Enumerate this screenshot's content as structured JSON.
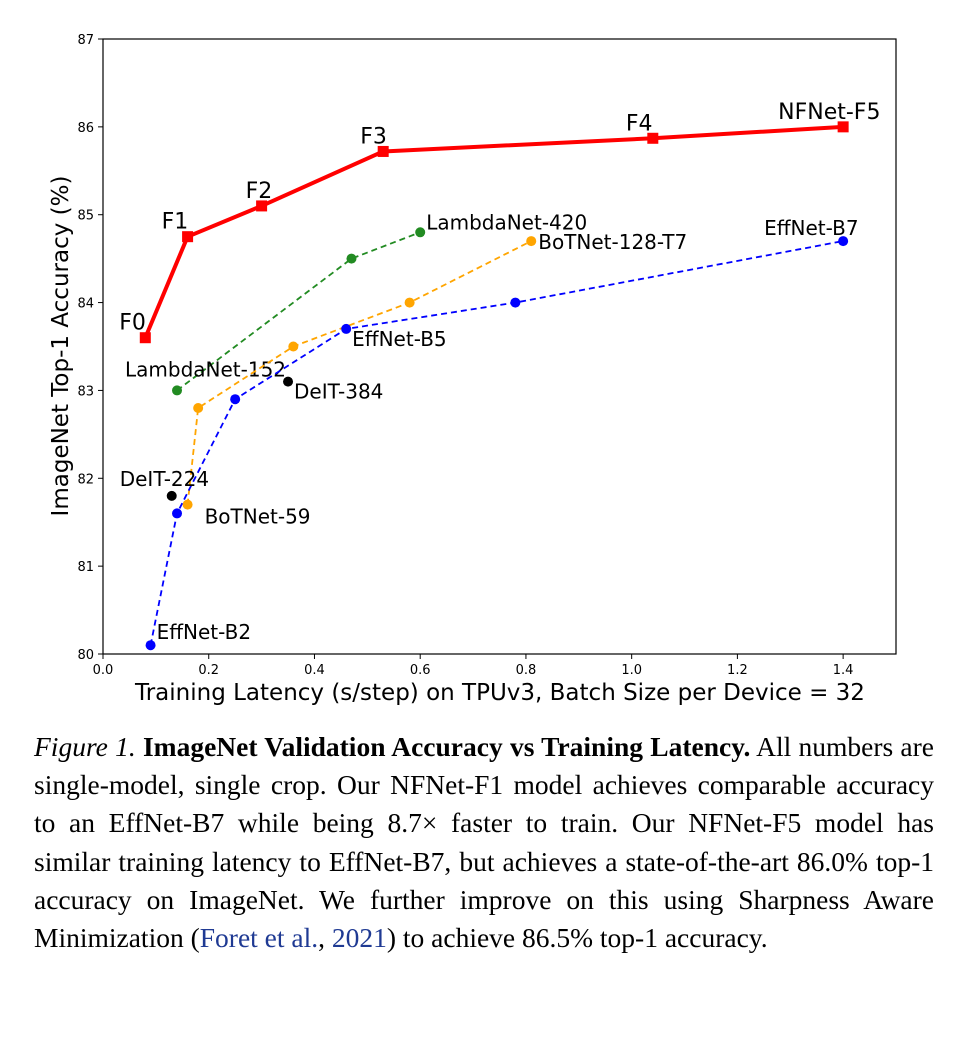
{
  "chart_data": {
    "type": "line",
    "xlabel": "Training Latency (s/step) on TPUv3, Batch Size per Device = 32",
    "ylabel": "ImageNet Top-1 Accuracy (%)",
    "xlim": [
      0.0,
      1.5
    ],
    "ylim": [
      80,
      87
    ],
    "xticks": [
      "0.0",
      "0.2",
      "0.4",
      "0.6",
      "0.8",
      "1.0",
      "1.2",
      "1.4"
    ],
    "yticks": [
      "80",
      "81",
      "82",
      "83",
      "84",
      "85",
      "86",
      "87"
    ],
    "grid": false,
    "series": [
      {
        "color": "#ff0000",
        "style": "solid",
        "marker": "square",
        "points": [
          {
            "x": 0.08,
            "y": 83.6,
            "label": "F0"
          },
          {
            "x": 0.16,
            "y": 84.75,
            "label": "F1"
          },
          {
            "x": 0.3,
            "y": 85.1,
            "label": "F2"
          },
          {
            "x": 0.53,
            "y": 85.72,
            "label": "F3"
          },
          {
            "x": 1.04,
            "y": 85.87,
            "label": "F4"
          },
          {
            "x": 1.4,
            "y": 86.0,
            "label": "NFNet-F5"
          }
        ]
      },
      {
        "color": "#228b22",
        "style": "dashed",
        "marker": "circle",
        "points": [
          {
            "x": 0.14,
            "y": 83.0,
            "label": "LambdaNet-152"
          },
          {
            "x": 0.47,
            "y": 84.5,
            "label": ""
          },
          {
            "x": 0.6,
            "y": 84.8,
            "label": "LambdaNet-420"
          }
        ]
      },
      {
        "color": "#ffa500",
        "style": "dashed",
        "marker": "circle",
        "points": [
          {
            "x": 0.16,
            "y": 81.7,
            "label": "BoTNet-59"
          },
          {
            "x": 0.18,
            "y": 82.8,
            "label": ""
          },
          {
            "x": 0.36,
            "y": 83.5,
            "label": ""
          },
          {
            "x": 0.58,
            "y": 84.0,
            "label": ""
          },
          {
            "x": 0.81,
            "y": 84.7,
            "label": "BoTNet-128-T7"
          }
        ]
      },
      {
        "color": "#0000ff",
        "style": "dashed",
        "marker": "circle",
        "points": [
          {
            "x": 0.09,
            "y": 80.1,
            "label": "EffNet-B2"
          },
          {
            "x": 0.14,
            "y": 81.6,
            "label": ""
          },
          {
            "x": 0.25,
            "y": 82.9,
            "label": ""
          },
          {
            "x": 0.46,
            "y": 83.7,
            "label": "EffNet-B5"
          },
          {
            "x": 0.78,
            "y": 84.0,
            "label": ""
          },
          {
            "x": 1.4,
            "y": 84.7,
            "label": "EffNet-B7"
          }
        ]
      },
      {
        "color": "#000000",
        "style": "none",
        "marker": "circle",
        "points": [
          {
            "x": 0.13,
            "y": 81.8,
            "label": "DeIT-224"
          },
          {
            "x": 0.35,
            "y": 83.1,
            "label": "DeIT-384"
          }
        ]
      }
    ]
  },
  "caption": {
    "figure_number": "Figure 1.",
    "title": "ImageNet Validation Accuracy vs Training Latency.",
    "text_before_cite": "All numbers are single-model, single crop. Our NFNet-F1 model achieves comparable accuracy to an EffNet-B7 while being 8.7× faster to train. Our NFNet-F5 model has similar training latency to EffNet-B7, but achieves a state-of-the-art 86.0% top-1 accuracy on ImageNet. We further improve on this using Sharpness Aware Minimization (",
    "cite_author": "Foret et al.",
    "cite_sep": ", ",
    "cite_year": "2021",
    "text_after_cite": ") to achieve 86.5% top-1 accuracy."
  }
}
